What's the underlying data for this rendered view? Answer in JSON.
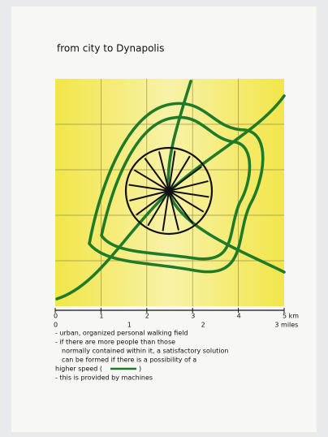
{
  "title": "from city to Dynapolis",
  "scale": {
    "km": [
      "0",
      "1",
      "2",
      "3",
      "4",
      "5 km"
    ],
    "miles": [
      "0",
      "1",
      "2",
      "3 miles"
    ]
  },
  "notes": [
    "- urban, organized personal walking field",
    "- if there are more people than those",
    "normally contained within it, a satisfactory solution",
    "can be formed if there is a possibility of a"
  ],
  "speed_note": {
    "before": "higher speed (",
    "after": ")"
  },
  "last_note": "- this is provided by machines"
}
